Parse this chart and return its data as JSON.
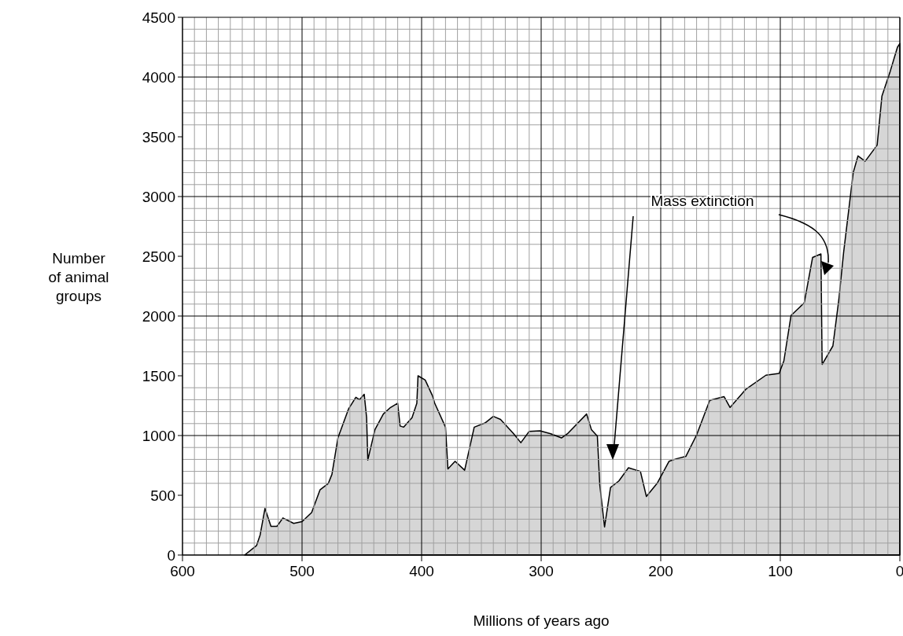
{
  "chart_data": {
    "type": "area",
    "xlabel": "Millions of years ago",
    "ylabel": "Number of animal groups",
    "xlim": [
      600,
      0
    ],
    "xticks": [
      600,
      500,
      400,
      300,
      200,
      100,
      0
    ],
    "ylim": [
      0,
      4500
    ],
    "yticks": [
      0,
      500,
      1000,
      1500,
      2000,
      2500,
      3000,
      3500,
      4000,
      4500
    ],
    "grid": true,
    "annotations": [
      "Mass extinction"
    ],
    "series": [
      {
        "color": "#cccccc",
        "x": [
          548,
          538,
          535,
          531,
          526,
          521,
          516,
          507,
          500,
          492,
          485,
          478,
          475,
          470,
          461,
          455,
          452,
          448,
          446,
          445,
          439,
          432,
          426,
          420,
          418,
          415,
          408,
          404,
          403,
          397,
          391,
          389,
          380,
          378,
          372,
          364,
          356,
          347,
          340,
          334,
          323,
          317,
          310,
          301,
          292,
          283,
          278,
          262,
          258,
          253,
          251,
          247,
          242,
          235,
          227,
          217,
          212,
          203,
          193,
          187,
          179,
          170,
          159,
          147,
          142,
          129,
          112,
          101,
          97,
          91,
          80,
          73,
          66,
          65,
          56,
          51,
          47,
          39,
          35,
          29,
          19,
          15,
          8,
          2,
          0
        ],
        "values": [
          0,
          80,
          170,
          390,
          240,
          240,
          310,
          265,
          280,
          355,
          545,
          600,
          675,
          980,
          1225,
          1320,
          1300,
          1345,
          1150,
          795,
          1050,
          1180,
          1235,
          1270,
          1080,
          1070,
          1150,
          1270,
          1500,
          1465,
          1335,
          1270,
          1070,
          720,
          785,
          710,
          1070,
          1105,
          1160,
          1135,
          1015,
          940,
          1035,
          1040,
          1015,
          980,
          1015,
          1180,
          1050,
          995,
          590,
          235,
          565,
          620,
          730,
          700,
          490,
          600,
          785,
          805,
          825,
          1005,
          1295,
          1325,
          1235,
          1385,
          1505,
          1520,
          1625,
          2005,
          2110,
          2490,
          2520,
          1595,
          1750,
          2140,
          2535,
          3200,
          3340,
          3295,
          3430,
          3840,
          4050,
          4250,
          4280
        ]
      }
    ]
  }
}
